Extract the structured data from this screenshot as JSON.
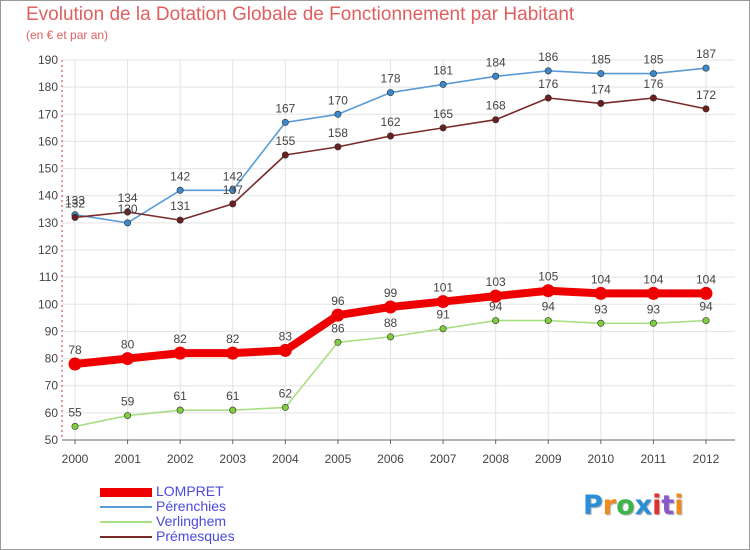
{
  "header": {
    "title": "Evolution de la Dotation Globale de Fonctionnement par Habitant",
    "subtitle": "(en € et par an)"
  },
  "logo": {
    "text": "Proxiti",
    "letters": [
      "P",
      "r",
      "o",
      "x",
      "i",
      "t",
      "i"
    ],
    "colors": [
      "#2a8fd6",
      "#f08a1c",
      "#3bb54a",
      "#2a8fd6",
      "#e52f2f",
      "#8a58c8",
      "#f08a1c"
    ]
  },
  "chart_data": {
    "type": "line",
    "title": "Evolution de la Dotation Globale de Fonctionnement par Habitant",
    "subtitle": "(en € et par an)",
    "xlabel": "",
    "ylabel": "",
    "x": [
      "2000",
      "2001",
      "2002",
      "2003",
      "2004",
      "2005",
      "2006",
      "2007",
      "2008",
      "2009",
      "2010",
      "2011",
      "2012"
    ],
    "ylim": [
      50,
      190
    ],
    "yticks": [
      50,
      60,
      70,
      80,
      90,
      100,
      110,
      120,
      130,
      140,
      150,
      160,
      170,
      180,
      190
    ],
    "grid": true,
    "legend_position": "bottom-left",
    "series": [
      {
        "name": "Pérenchies",
        "color": "#5b9bd5",
        "point_color": "#3a88cf",
        "emphasis": false,
        "values": [
          133,
          130,
          142,
          142,
          167,
          170,
          178,
          181,
          184,
          186,
          185,
          185,
          187
        ],
        "labels": [
          "133",
          "130",
          "142",
          "142",
          "167",
          "170",
          "178",
          "181",
          "184",
          "186",
          "185",
          "185",
          "187"
        ]
      },
      {
        "name": "Prémesques",
        "color": "#7b2a2a",
        "point_color": "#6b1f1f",
        "emphasis": false,
        "values": [
          132,
          134,
          131,
          137,
          155,
          158,
          162,
          165,
          168,
          176,
          174,
          176,
          172
        ],
        "labels": [
          "132",
          "134",
          "131",
          "137",
          "155",
          "158",
          "162",
          "165",
          "168",
          "176",
          "174",
          "176",
          "172"
        ]
      },
      {
        "name": "Verlinghem",
        "color": "#a8df84",
        "point_color": "#7fcc3f",
        "emphasis": false,
        "values": [
          55,
          59,
          61,
          61,
          62,
          86,
          88,
          91,
          94,
          94,
          93,
          93,
          94
        ],
        "labels": [
          "55",
          "59",
          "61",
          "61",
          "62",
          "86",
          "88",
          "91",
          "94",
          "94",
          "93",
          "93",
          "94"
        ]
      },
      {
        "name": "LOMPRET",
        "color": "#ee0000",
        "point_color": "#ee0000",
        "emphasis": true,
        "values": [
          78,
          80,
          82,
          82,
          83,
          96,
          99,
          101,
          103,
          105,
          104,
          104,
          104
        ],
        "labels": [
          "78",
          "80",
          "82",
          "82",
          "83",
          "96",
          "99",
          "101",
          "103",
          "105",
          "104",
          "104",
          "104"
        ]
      }
    ],
    "legend": [
      {
        "name": "LOMPRET",
        "color": "#ee0000",
        "thick": true
      },
      {
        "name": "Pérenchies",
        "color": "#5b9bd5",
        "thick": false
      },
      {
        "name": "Verlinghem",
        "color": "#a8df84",
        "thick": false
      },
      {
        "name": "Prémesques",
        "color": "#7b2a2a",
        "thick": false
      }
    ]
  }
}
